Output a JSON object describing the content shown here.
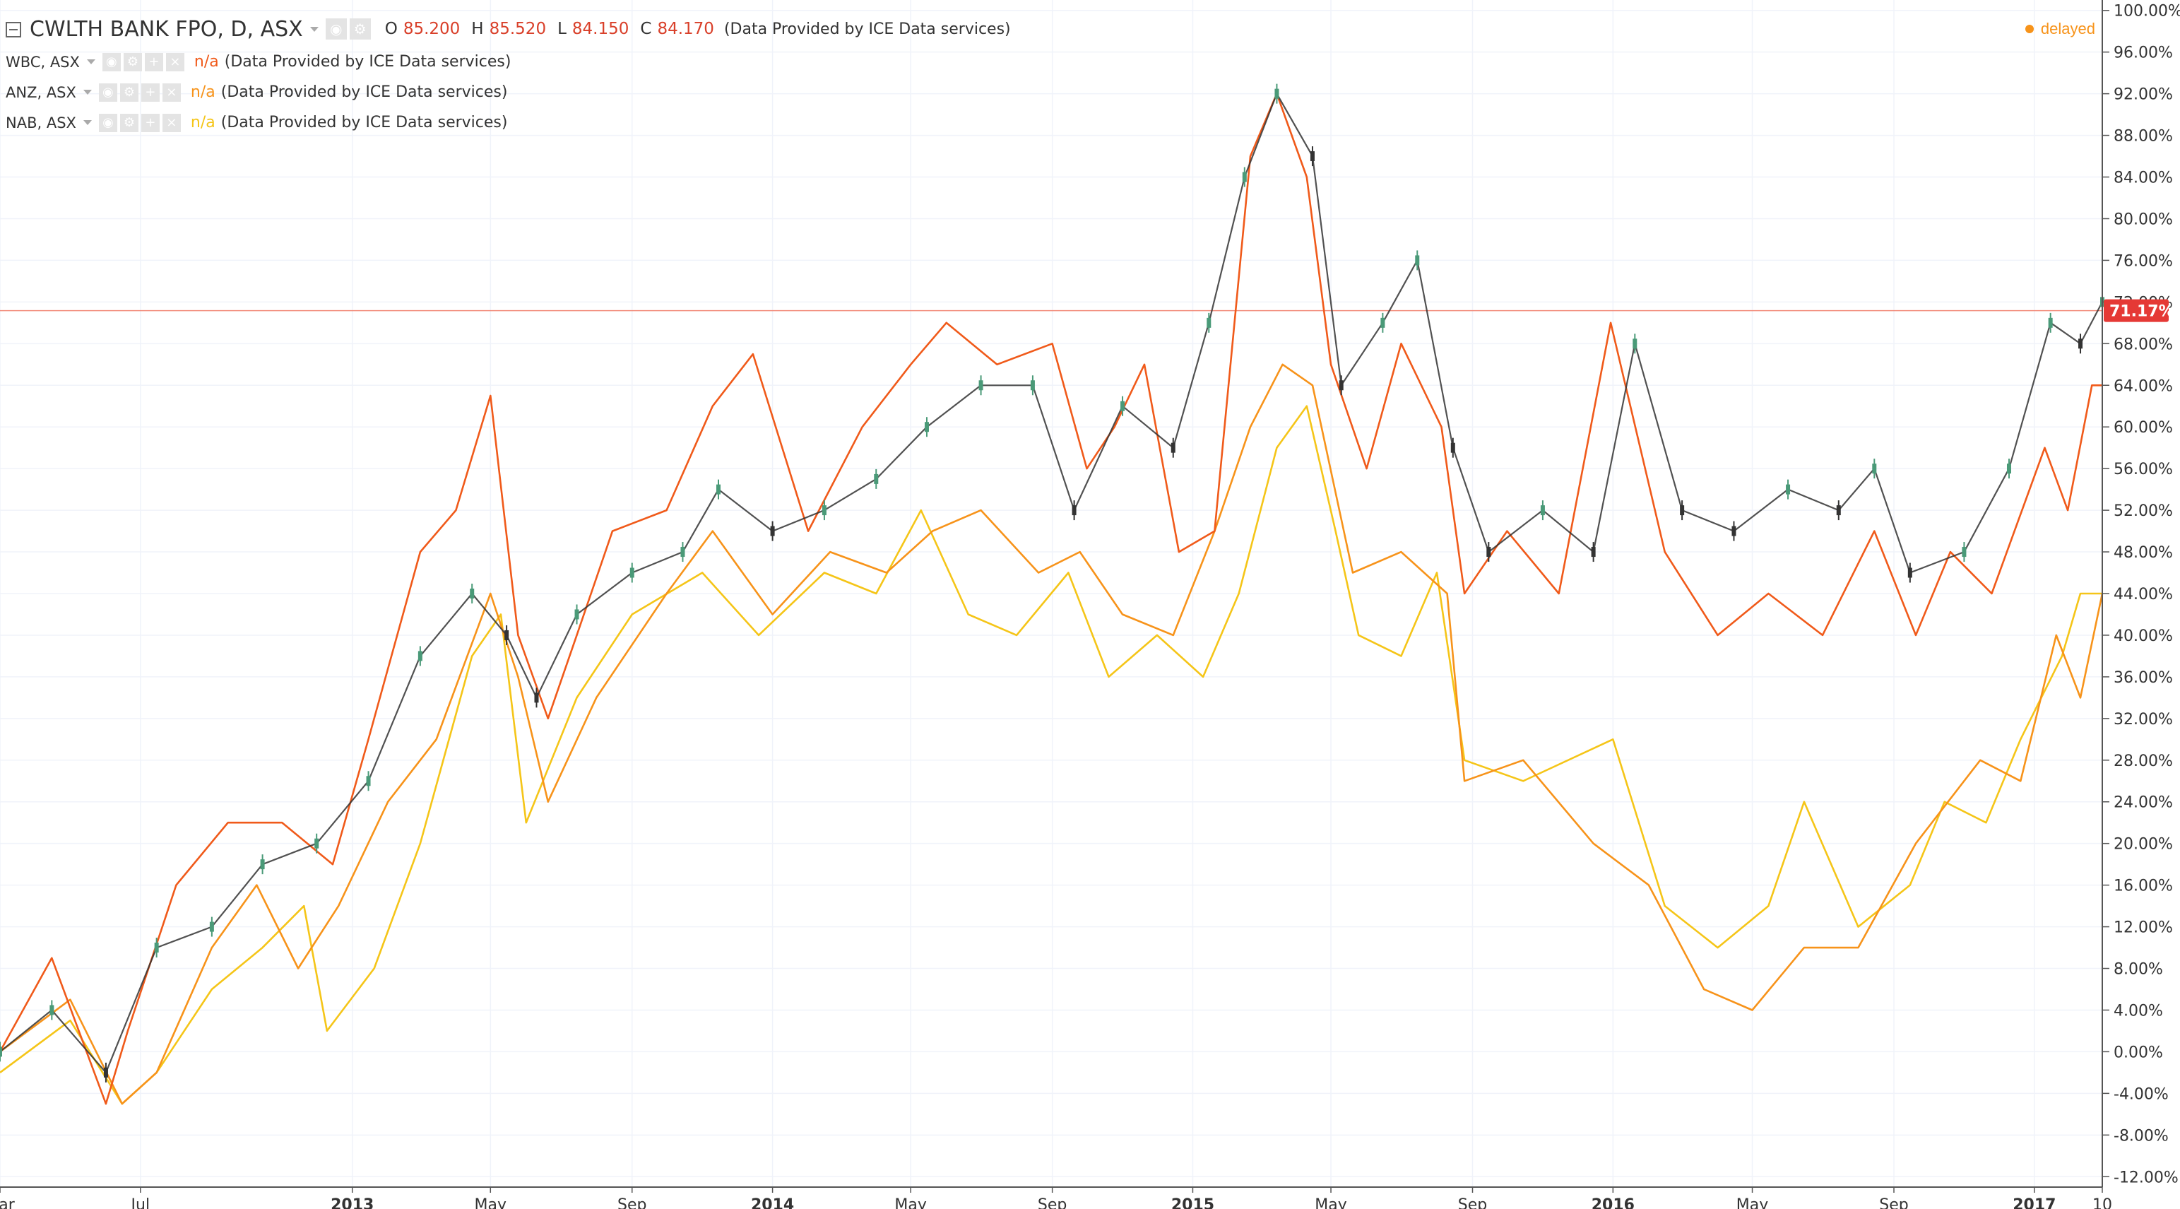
{
  "legend": {
    "main": {
      "title": "CWLTH BANK FPO, D, ASX",
      "o_label": "O",
      "o_value": "85.200",
      "h_label": "H",
      "h_value": "85.520",
      "l_label": "L",
      "l_value": "84.150",
      "c_label": "C",
      "c_value": "84.170",
      "provider": "(Data Provided by ICE Data services)"
    },
    "series": [
      {
        "title": "WBC, ASX",
        "value": "n/a",
        "provider": "(Data Provided by ICE Data services)",
        "color": "#f05a1a"
      },
      {
        "title": "ANZ, ASX",
        "value": "n/a",
        "provider": "(Data Provided by ICE Data services)",
        "color": "#f7931a"
      },
      {
        "title": "NAB, ASX",
        "value": "n/a",
        "provider": "(Data Provided by ICE Data services)",
        "color": "#f5c518"
      }
    ]
  },
  "status": {
    "delayed": "delayed"
  },
  "colors": {
    "candle_up": "#4a9a78",
    "candle_down": "#333333",
    "wbc": "#f05a1a",
    "anz": "#f7931a",
    "nab": "#f5c518",
    "price_line": "#f28b7a",
    "price_badge": "#e53935",
    "grid": "#f0f3fa",
    "axis": "#555555"
  },
  "chart_data": {
    "type": "line",
    "scale": "percent",
    "ylim": [
      -13,
      101
    ],
    "yticks": [
      100,
      96,
      92,
      88,
      84,
      80,
      76,
      72,
      68,
      64,
      60,
      56,
      52,
      48,
      44,
      40,
      36,
      32,
      28,
      24,
      20,
      16,
      12,
      8,
      4,
      0,
      -4,
      -8,
      -12
    ],
    "ytick_labels": [
      "100.00%",
      "96.00%",
      "92.00%",
      "88.00%",
      "84.00%",
      "80.00%",
      "76.00%",
      "72.00%",
      "68.00%",
      "64.00%",
      "60.00%",
      "56.00%",
      "52.00%",
      "48.00%",
      "44.00%",
      "40.00%",
      "36.00%",
      "32.00%",
      "28.00%",
      "24.00%",
      "20.00%",
      "16.00%",
      "12.00%",
      "8.00%",
      "4.00%",
      "0.00%",
      "-4.00%",
      "-8.00%",
      "-12.00%"
    ],
    "xlim": [
      "2012-03-01",
      "2017-03-01"
    ],
    "xticks": [
      {
        "date": "2012-03-01",
        "label": "Mar",
        "bold": false
      },
      {
        "date": "2012-07-01",
        "label": "Jul",
        "bold": false
      },
      {
        "date": "2013-01-01",
        "label": "2013",
        "bold": true
      },
      {
        "date": "2013-05-01",
        "label": "May",
        "bold": false
      },
      {
        "date": "2013-09-01",
        "label": "Sep",
        "bold": false
      },
      {
        "date": "2014-01-01",
        "label": "2014",
        "bold": true
      },
      {
        "date": "2014-05-01",
        "label": "May",
        "bold": false
      },
      {
        "date": "2014-09-01",
        "label": "Sep",
        "bold": false
      },
      {
        "date": "2015-01-01",
        "label": "2015",
        "bold": true
      },
      {
        "date": "2015-05-01",
        "label": "May",
        "bold": false
      },
      {
        "date": "2015-09-01",
        "label": "Sep",
        "bold": false
      },
      {
        "date": "2016-01-01",
        "label": "2016",
        "bold": true
      },
      {
        "date": "2016-05-01",
        "label": "May",
        "bold": false
      },
      {
        "date": "2016-09-01",
        "label": "Sep",
        "bold": false
      },
      {
        "date": "2017-01-01",
        "label": "2017",
        "bold": true
      },
      {
        "date": "2017-03-01",
        "label": "10",
        "bold": false
      }
    ],
    "current_value": 71.17,
    "current_label": "71.17%",
    "series": [
      {
        "name": "CWLTH BANK FPO",
        "kind": "candles",
        "color": "#4a9a78",
        "x": [
          "2012-03-01",
          "2012-04-15",
          "2012-06-01",
          "2012-07-15",
          "2012-09-01",
          "2012-10-15",
          "2012-12-01",
          "2013-01-15",
          "2013-03-01",
          "2013-04-15",
          "2013-05-15",
          "2013-06-10",
          "2013-07-15",
          "2013-09-01",
          "2013-10-15",
          "2013-11-15",
          "2014-01-01",
          "2014-02-15",
          "2014-04-01",
          "2014-05-15",
          "2014-07-01",
          "2014-08-15",
          "2014-09-20",
          "2014-11-01",
          "2014-12-15",
          "2015-01-15",
          "2015-02-15",
          "2015-03-15",
          "2015-04-15",
          "2015-05-10",
          "2015-06-15",
          "2015-07-15",
          "2015-08-15",
          "2015-09-15",
          "2015-11-01",
          "2015-12-15",
          "2016-01-20",
          "2016-03-01",
          "2016-04-15",
          "2016-06-01",
          "2016-07-15",
          "2016-08-15",
          "2016-09-15",
          "2016-11-01",
          "2016-12-10",
          "2017-01-15",
          "2017-02-10",
          "2017-03-01"
        ],
        "y": [
          0,
          4,
          -2,
          10,
          12,
          18,
          20,
          26,
          38,
          44,
          40,
          34,
          42,
          46,
          48,
          54,
          50,
          52,
          55,
          60,
          64,
          64,
          52,
          62,
          58,
          70,
          84,
          92,
          86,
          64,
          70,
          76,
          58,
          48,
          52,
          48,
          68,
          52,
          50,
          54,
          52,
          56,
          46,
          48,
          56,
          70,
          68,
          72
        ]
      },
      {
        "name": "WBC",
        "kind": "line",
        "color": "#f05a1a",
        "x": [
          "2012-03-01",
          "2012-04-15",
          "2012-06-01",
          "2012-06-20",
          "2012-08-01",
          "2012-09-15",
          "2012-11-01",
          "2012-12-15",
          "2013-01-15",
          "2013-03-01",
          "2013-04-01",
          "2013-05-01",
          "2013-05-25",
          "2013-06-20",
          "2013-07-15",
          "2013-08-15",
          "2013-10-01",
          "2013-11-10",
          "2013-12-15",
          "2014-02-01",
          "2014-03-20",
          "2014-05-01",
          "2014-06-01",
          "2014-07-15",
          "2014-09-01",
          "2014-10-01",
          "2014-10-25",
          "2014-11-20",
          "2014-12-20",
          "2015-01-20",
          "2015-02-20",
          "2015-03-15",
          "2015-04-10",
          "2015-05-01",
          "2015-06-01",
          "2015-07-01",
          "2015-08-05",
          "2015-08-25",
          "2015-10-01",
          "2015-11-15",
          "2015-12-30",
          "2016-02-15",
          "2016-04-01",
          "2016-05-15",
          "2016-07-01",
          "2016-08-15",
          "2016-09-20",
          "2016-10-20",
          "2016-11-25",
          "2017-01-10",
          "2017-01-30",
          "2017-02-20",
          "2017-03-01"
        ],
        "y": [
          0,
          9,
          -5,
          2,
          16,
          22,
          22,
          18,
          30,
          48,
          52,
          63,
          40,
          32,
          40,
          50,
          52,
          62,
          67,
          50,
          60,
          66,
          70,
          66,
          68,
          56,
          60,
          66,
          48,
          50,
          86,
          92,
          84,
          66,
          56,
          68,
          60,
          44,
          50,
          44,
          70,
          48,
          40,
          44,
          40,
          50,
          40,
          48,
          44,
          58,
          52,
          64,
          64
        ]
      },
      {
        "name": "ANZ",
        "kind": "line",
        "color": "#f7931a",
        "x": [
          "2012-03-01",
          "2012-05-01",
          "2012-06-15",
          "2012-07-15",
          "2012-09-01",
          "2012-10-10",
          "2012-11-15",
          "2012-12-20",
          "2013-02-01",
          "2013-03-15",
          "2013-05-01",
          "2013-05-25",
          "2013-06-20",
          "2013-08-01",
          "2013-10-01",
          "2013-11-10",
          "2014-01-01",
          "2014-02-20",
          "2014-04-10",
          "2014-05-20",
          "2014-07-01",
          "2014-08-20",
          "2014-09-25",
          "2014-11-01",
          "2014-12-15",
          "2015-01-20",
          "2015-02-20",
          "2015-03-20",
          "2015-04-15",
          "2015-05-20",
          "2015-07-01",
          "2015-08-10",
          "2015-08-25",
          "2015-10-15",
          "2015-12-15",
          "2016-02-01",
          "2016-03-20",
          "2016-05-01",
          "2016-06-15",
          "2016-08-01",
          "2016-09-20",
          "2016-11-15",
          "2016-12-20",
          "2017-01-20",
          "2017-02-10",
          "2017-03-01"
        ],
        "y": [
          0,
          5,
          -5,
          -2,
          10,
          16,
          8,
          14,
          24,
          30,
          44,
          36,
          24,
          34,
          44,
          50,
          42,
          48,
          46,
          50,
          52,
          46,
          48,
          42,
          40,
          50,
          60,
          66,
          64,
          46,
          48,
          44,
          26,
          28,
          20,
          16,
          6,
          4,
          10,
          10,
          20,
          28,
          26,
          40,
          34,
          44
        ]
      },
      {
        "name": "NAB",
        "kind": "line",
        "color": "#f5c518",
        "x": [
          "2012-03-01",
          "2012-05-01",
          "2012-06-15",
          "2012-07-15",
          "2012-09-01",
          "2012-10-15",
          "2012-11-20",
          "2012-12-10",
          "2013-01-20",
          "2013-03-01",
          "2013-04-15",
          "2013-05-10",
          "2013-06-01",
          "2013-07-15",
          "2013-09-01",
          "2013-11-01",
          "2013-12-20",
          "2014-02-15",
          "2014-04-01",
          "2014-05-10",
          "2014-06-20",
          "2014-08-01",
          "2014-09-15",
          "2014-10-20",
          "2014-12-01",
          "2015-01-10",
          "2015-02-10",
          "2015-03-15",
          "2015-04-10",
          "2015-05-05",
          "2015-05-25",
          "2015-07-01",
          "2015-08-01",
          "2015-08-25",
          "2015-10-15",
          "2016-01-01",
          "2016-02-15",
          "2016-04-01",
          "2016-05-15",
          "2016-06-15",
          "2016-08-01",
          "2016-09-15",
          "2016-10-15",
          "2016-11-20",
          "2016-12-20",
          "2017-01-25",
          "2017-02-10",
          "2017-03-01"
        ],
        "y": [
          -2,
          3,
          -5,
          -2,
          6,
          10,
          14,
          2,
          8,
          20,
          38,
          42,
          22,
          34,
          42,
          46,
          40,
          46,
          44,
          52,
          42,
          40,
          46,
          36,
          40,
          36,
          44,
          58,
          62,
          50,
          40,
          38,
          46,
          28,
          26,
          30,
          14,
          10,
          14,
          24,
          12,
          16,
          24,
          22,
          30,
          38,
          44,
          44
        ]
      }
    ]
  }
}
